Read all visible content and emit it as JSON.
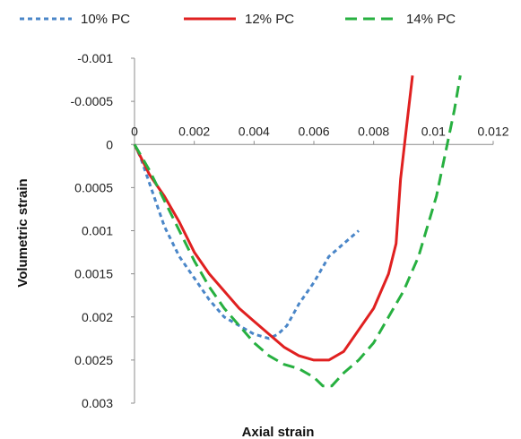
{
  "chart_data": {
    "type": "line",
    "xlabel": "Axial strain",
    "ylabel": "Volumetric strain",
    "xlim": [
      0,
      0.012
    ],
    "ylim": [
      -0.001,
      0.003
    ],
    "y_axis_inverted": true,
    "x_axis_position": "top at y = 0",
    "grid": false,
    "legend_position": "top",
    "x_ticks": [
      "0",
      "0.002",
      "0.004",
      "0.006",
      "0.008",
      "0.01",
      "0.012"
    ],
    "y_ticks": [
      "-0.001",
      "-0.0005",
      "0",
      "0.0005",
      "0.001",
      "0.0015",
      "0.002",
      "0.0025",
      "0.003"
    ],
    "series": [
      {
        "name": "10% PC",
        "color": "#4a86c8",
        "dash": "short-dash",
        "points": [
          [
            0,
            0
          ],
          [
            0.0002,
            0.00015
          ],
          [
            0.0005,
            0.00045
          ],
          [
            0.001,
            0.00095
          ],
          [
            0.0015,
            0.0013
          ],
          [
            0.002,
            0.00155
          ],
          [
            0.0025,
            0.0018
          ],
          [
            0.003,
            0.002
          ],
          [
            0.0035,
            0.0021
          ],
          [
            0.004,
            0.0022
          ],
          [
            0.0045,
            0.00225
          ],
          [
            0.0048,
            0.0022
          ],
          [
            0.0051,
            0.0021
          ],
          [
            0.0055,
            0.00185
          ],
          [
            0.006,
            0.0016
          ],
          [
            0.0065,
            0.0013
          ],
          [
            0.007,
            0.00115
          ],
          [
            0.0075,
            0.001
          ]
        ]
      },
      {
        "name": "12% PC",
        "color": "#e02020",
        "dash": "solid",
        "points": [
          [
            0,
            0
          ],
          [
            0.0005,
            0.00035
          ],
          [
            0.001,
            0.0006
          ],
          [
            0.0015,
            0.0009
          ],
          [
            0.002,
            0.00125
          ],
          [
            0.0025,
            0.0015
          ],
          [
            0.003,
            0.0017
          ],
          [
            0.0035,
            0.0019
          ],
          [
            0.004,
            0.00205
          ],
          [
            0.0045,
            0.0022
          ],
          [
            0.005,
            0.00235
          ],
          [
            0.0055,
            0.00245
          ],
          [
            0.006,
            0.0025
          ],
          [
            0.0063,
            0.0025
          ],
          [
            0.0065,
            0.0025
          ],
          [
            0.007,
            0.0024
          ],
          [
            0.0075,
            0.00215
          ],
          [
            0.008,
            0.0019
          ],
          [
            0.0085,
            0.0015
          ],
          [
            0.00875,
            0.00115
          ],
          [
            0.0089,
            0.0004
          ],
          [
            0.0091,
            -0.0002
          ],
          [
            0.0093,
            -0.0008
          ]
        ]
      },
      {
        "name": "14% PC",
        "color": "#27b040",
        "dash": "long-dash",
        "points": [
          [
            0,
            0
          ],
          [
            0.0005,
            0.0003
          ],
          [
            0.001,
            0.00065
          ],
          [
            0.0015,
            0.001
          ],
          [
            0.002,
            0.00135
          ],
          [
            0.0025,
            0.00165
          ],
          [
            0.003,
            0.0019
          ],
          [
            0.0035,
            0.0021
          ],
          [
            0.004,
            0.0023
          ],
          [
            0.0045,
            0.00245
          ],
          [
            0.005,
            0.00255
          ],
          [
            0.0055,
            0.0026
          ],
          [
            0.006,
            0.0027
          ],
          [
            0.0063,
            0.0028
          ],
          [
            0.0066,
            0.0028
          ],
          [
            0.007,
            0.00265
          ],
          [
            0.0075,
            0.0025
          ],
          [
            0.008,
            0.0023
          ],
          [
            0.0085,
            0.002
          ],
          [
            0.009,
            0.0017
          ],
          [
            0.0095,
            0.0013
          ],
          [
            0.0101,
            0.0006
          ],
          [
            0.0104,
            0.0001
          ],
          [
            0.0107,
            -0.0004
          ],
          [
            0.0109,
            -0.0008
          ]
        ]
      }
    ]
  }
}
